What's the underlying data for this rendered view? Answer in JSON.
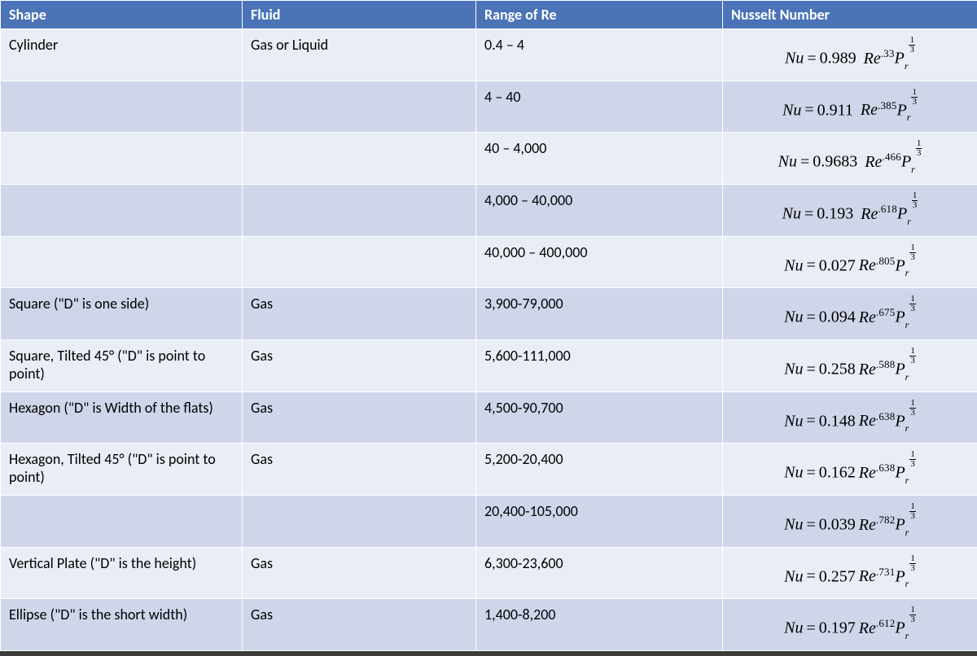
{
  "colors": {
    "header_bg": "#4a73b8",
    "band_light": "#e9edf6",
    "band_dark": "#cfd6ea",
    "border": "#ffffff"
  },
  "columns": [
    {
      "key": "shape",
      "label": "Shape"
    },
    {
      "key": "fluid",
      "label": "Fluid"
    },
    {
      "key": "range",
      "label": "Range of Re"
    },
    {
      "key": "nusselt",
      "label": "Nusselt Number"
    }
  ],
  "rows": [
    {
      "shape": "Cylinder",
      "fluid": "Gas or Liquid",
      "range": "0.4 – 4",
      "coef": "0.989",
      "exp": ".33",
      "band": "light"
    },
    {
      "shape": "",
      "fluid": "",
      "range": "4 – 40",
      "coef": "0.911",
      "exp": ".385",
      "band": "dark"
    },
    {
      "shape": "",
      "fluid": "",
      "range": "40 – 4,000",
      "coef": "0.9683",
      "exp": ".466",
      "band": "light"
    },
    {
      "shape": "",
      "fluid": "",
      "range": "4,000 – 40,000",
      "coef": "0.193",
      "exp": ".618",
      "band": "dark"
    },
    {
      "shape": "",
      "fluid": "",
      "range": "40,000 – 400,000",
      "coef": "0.027",
      "exp": ".805",
      "band": "light",
      "nospace": true
    },
    {
      "shape": "Square (\"D\" is one side)",
      "fluid": "Gas",
      "range": "3,900-79,000",
      "coef": "0.094",
      "exp": ".675",
      "band": "dark",
      "nospace": true
    },
    {
      "shape": "Square, Tilted 45° (\"D\" is point to point)",
      "fluid": "Gas",
      "range": "5,600-111,000",
      "coef": "0.258",
      "exp": ".588",
      "band": "light",
      "nospace": true
    },
    {
      "shape": "Hexagon (\"D\" is Width of the flats)",
      "fluid": "Gas",
      "range": "4,500-90,700",
      "coef": "0.148",
      "exp": ".638",
      "band": "dark",
      "nospace": true
    },
    {
      "shape": "Hexagon, Tilted 45° (\"D\" is point to point)",
      "fluid": "Gas",
      "range": "5,200-20,400",
      "coef": "0.162",
      "exp": ".638",
      "band": "light",
      "nospace": true
    },
    {
      "shape": "",
      "fluid": "",
      "range": "20,400-105,000",
      "coef": "0.039",
      "exp": ".782",
      "band": "dark",
      "nospace": true
    },
    {
      "shape": "Vertical Plate (\"D\" is the height)",
      "fluid": "Gas",
      "range": "6,300-23,600",
      "coef": "0.257",
      "exp": ".731",
      "band": "light",
      "nospace": true
    },
    {
      "shape": "Ellipse (\"D\" is the short width)",
      "fluid": "Gas",
      "range": "1,400-8,200",
      "coef": "0.197",
      "exp": ".612",
      "band": "dark",
      "nospace": true
    }
  ],
  "formula_parts": {
    "nu": "Nu",
    "eq": "=",
    "re": "Re",
    "pr": "P",
    "pr_sub": "r",
    "pr_num": "1",
    "pr_den": "3"
  }
}
